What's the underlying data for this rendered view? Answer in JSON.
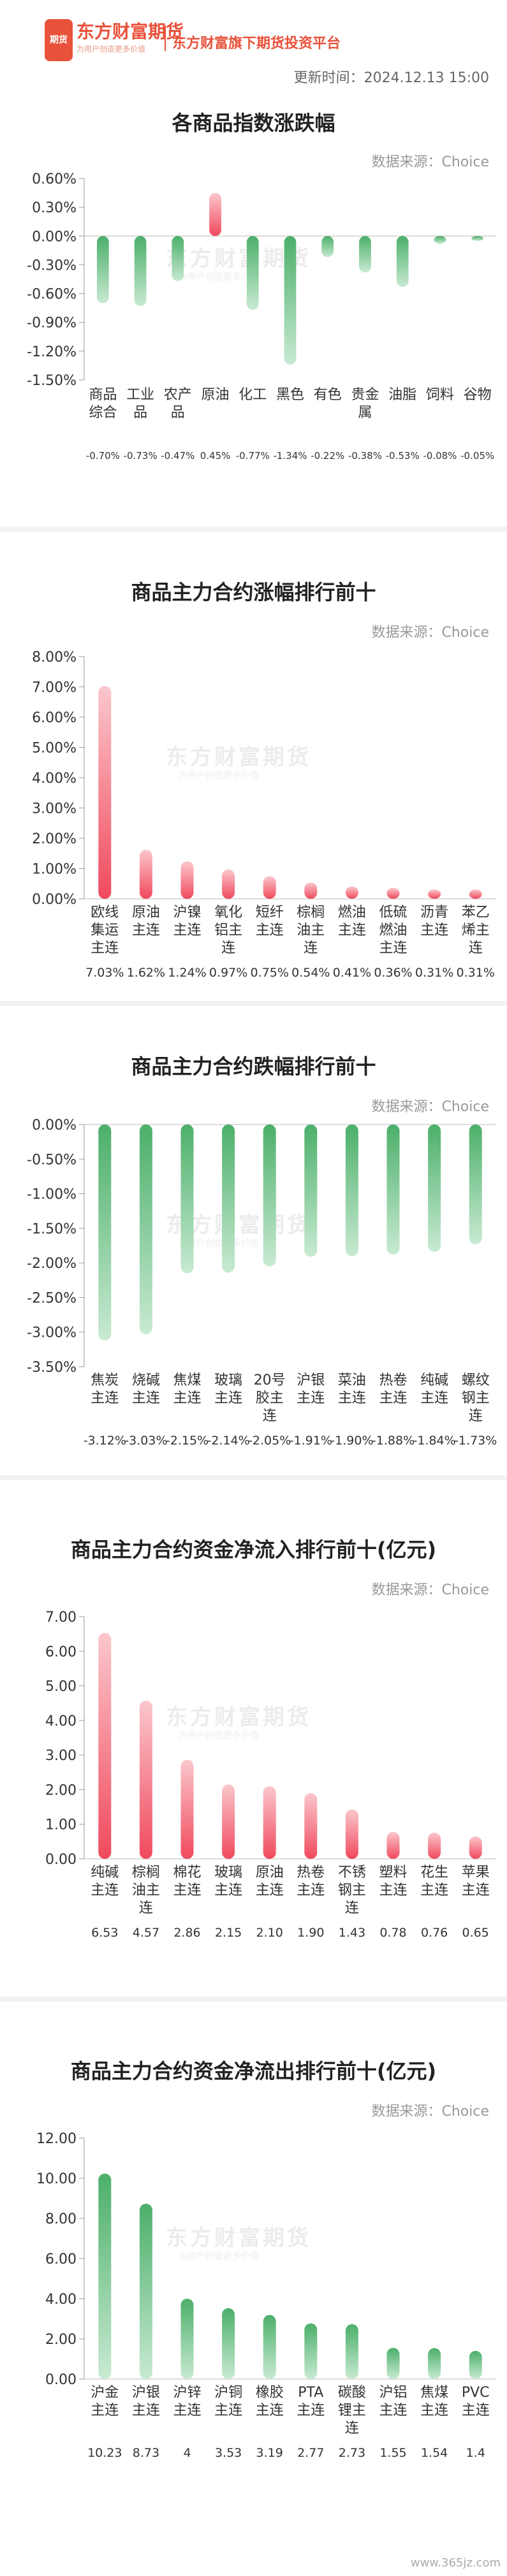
{
  "header": {
    "logo_text": "东方财富期货",
    "logo_box_text": "期货",
    "slogan": "为用户创造更多价值",
    "platform": "东方财富旗下期货投资平台",
    "update_time": "更新时间：2024.12.13 15:00"
  },
  "source_label": "数据来源：Choice",
  "watermark": {
    "text": "东方财富期货",
    "sub": "为用户创造更多价值"
  },
  "footer": "www.365jz.com",
  "colors": {
    "green": "#4caf6a",
    "green_light": "#c8ead2",
    "red": "#f04a5d",
    "red_light": "#fbc7cd"
  },
  "chart_data": [
    {
      "type": "bar",
      "title": "各商品指数涨跌幅",
      "categories": [
        "商品综合",
        "工业品",
        "农产品",
        "原油",
        "化工",
        "黑色",
        "有色",
        "贵金属",
        "油脂",
        "饲料",
        "谷物"
      ],
      "category_lines": [
        [
          "商品",
          "综合"
        ],
        [
          "工业",
          "品"
        ],
        [
          "农产",
          "品"
        ],
        [
          "原油"
        ],
        [
          "化工"
        ],
        [
          "黑色"
        ],
        [
          "有色"
        ],
        [
          "贵金",
          "属"
        ],
        [
          "油脂"
        ],
        [
          "饲料"
        ],
        [
          "谷物"
        ]
      ],
      "values": [
        -0.7,
        -0.73,
        -0.47,
        0.45,
        -0.77,
        -1.34,
        -0.22,
        -0.38,
        -0.53,
        -0.08,
        -0.05
      ],
      "value_labels": [
        "-0.70%",
        "-0.73%",
        "-0.47%",
        "0.45%",
        "-0.77%",
        "-1.34%",
        "-0.22%",
        "-0.38%",
        "-0.53%",
        "-0.08%",
        "-0.05%"
      ],
      "yticks": [
        "0.60%",
        "0.30%",
        "0.00%",
        "-0.30%",
        "-0.60%",
        "-0.90%",
        "-1.20%",
        "-1.50%"
      ],
      "ylim": [
        -1.5,
        0.6
      ]
    },
    {
      "type": "bar",
      "title": "商品主力合约涨幅排行前十",
      "categories": [
        "欧线集运主连",
        "原油主连",
        "沪镍主连",
        "氧化铝主连",
        "短纤主连",
        "棕榈油主连",
        "燃油主连",
        "低硫燃油主连",
        "沥青主连",
        "苯乙烯主连"
      ],
      "category_lines": [
        [
          "欧线",
          "集运",
          "主连"
        ],
        [
          "原油",
          "主连"
        ],
        [
          "沪镍",
          "主连"
        ],
        [
          "氧化",
          "铝主",
          "连"
        ],
        [
          "短纤",
          "主连"
        ],
        [
          "棕榈",
          "油主",
          "连"
        ],
        [
          "燃油",
          "主连"
        ],
        [
          "低硫",
          "燃油",
          "主连"
        ],
        [
          "沥青",
          "主连"
        ],
        [
          "苯乙",
          "烯主",
          "连"
        ]
      ],
      "values": [
        7.03,
        1.62,
        1.24,
        0.97,
        0.75,
        0.54,
        0.41,
        0.36,
        0.31,
        0.31
      ],
      "value_labels": [
        "7.03%",
        "1.62%",
        "1.24%",
        "0.97%",
        "0.75%",
        "0.54%",
        "0.41%",
        "0.36%",
        "0.31%",
        "0.31%"
      ],
      "yticks": [
        "8.00%",
        "7.00%",
        "6.00%",
        "5.00%",
        "4.00%",
        "3.00%",
        "2.00%",
        "1.00%",
        "0.00%"
      ],
      "ylim": [
        0,
        8
      ]
    },
    {
      "type": "bar",
      "title": "商品主力合约跌幅排行前十",
      "categories": [
        "焦炭主连",
        "烧碱主连",
        "焦煤主连",
        "玻璃主连",
        "20号胶主连",
        "沪银主连",
        "菜油主连",
        "热卷主连",
        "纯碱主连",
        "螺纹钢主连"
      ],
      "category_lines": [
        [
          "焦炭",
          "主连"
        ],
        [
          "烧碱",
          "主连"
        ],
        [
          "焦煤",
          "主连"
        ],
        [
          "玻璃",
          "主连"
        ],
        [
          "20号",
          "胶主",
          "连"
        ],
        [
          "沪银",
          "主连"
        ],
        [
          "菜油",
          "主连"
        ],
        [
          "热卷",
          "主连"
        ],
        [
          "纯碱",
          "主连"
        ],
        [
          "螺纹",
          "钢主",
          "连"
        ]
      ],
      "values": [
        -3.12,
        -3.03,
        -2.15,
        -2.14,
        -2.05,
        -1.91,
        -1.9,
        -1.88,
        -1.84,
        -1.73
      ],
      "value_labels": [
        "-3.12%",
        "-3.03%",
        "-2.15%",
        "-2.14%",
        "-2.05%",
        "-1.91%",
        "-1.90%",
        "-1.88%",
        "-1.84%",
        "-1.73%"
      ],
      "yticks": [
        "0.00%",
        "-0.50%",
        "-1.00%",
        "-1.50%",
        "-2.00%",
        "-2.50%",
        "-3.00%",
        "-3.50%"
      ],
      "ylim": [
        -3.5,
        0
      ]
    },
    {
      "type": "bar",
      "title": "商品主力合约资金净流入排行前十(亿元)",
      "categories": [
        "纯碱主连",
        "棕榈油主连",
        "棉花主连",
        "玻璃主连",
        "原油主连",
        "热卷主连",
        "不锈钢主连",
        "塑料主连",
        "花生主连",
        "苹果主连"
      ],
      "category_lines": [
        [
          "纯碱",
          "主连"
        ],
        [
          "棕榈",
          "油主",
          "连"
        ],
        [
          "棉花",
          "主连"
        ],
        [
          "玻璃",
          "主连"
        ],
        [
          "原油",
          "主连"
        ],
        [
          "热卷",
          "主连"
        ],
        [
          "不锈",
          "钢主",
          "连"
        ],
        [
          "塑料",
          "主连"
        ],
        [
          "花生",
          "主连"
        ],
        [
          "苹果",
          "主连"
        ]
      ],
      "values": [
        6.53,
        4.57,
        2.86,
        2.15,
        2.1,
        1.9,
        1.43,
        0.78,
        0.76,
        0.65
      ],
      "value_labels": [
        "6.53",
        "4.57",
        "2.86",
        "2.15",
        "2.10",
        "1.90",
        "1.43",
        "0.78",
        "0.76",
        "0.65"
      ],
      "yticks": [
        "7.00",
        "6.00",
        "5.00",
        "4.00",
        "3.00",
        "2.00",
        "1.00",
        "0.00"
      ],
      "ylim": [
        0,
        7
      ]
    },
    {
      "type": "bar",
      "title": "商品主力合约资金净流出排行前十(亿元)",
      "categories": [
        "沪金主连",
        "沪银主连",
        "沪锌主连",
        "沪铜主连",
        "橡胶主连",
        "PTA主连",
        "碳酸锂主连",
        "沪铝主连",
        "焦煤主连",
        "PVC主连"
      ],
      "category_lines": [
        [
          "沪金",
          "主连"
        ],
        [
          "沪银",
          "主连"
        ],
        [
          "沪锌",
          "主连"
        ],
        [
          "沪铜",
          "主连"
        ],
        [
          "橡胶",
          "主连"
        ],
        [
          "PTA",
          "主连"
        ],
        [
          "碳酸",
          "锂主",
          "连"
        ],
        [
          "沪铝",
          "主连"
        ],
        [
          "焦煤",
          "主连"
        ],
        [
          "PVC",
          "主连"
        ]
      ],
      "values": [
        10.23,
        8.73,
        4,
        3.53,
        3.19,
        2.77,
        2.73,
        1.55,
        1.54,
        1.4
      ],
      "value_labels": [
        "10.23",
        "8.73",
        "4",
        "3.53",
        "3.19",
        "2.77",
        "2.73",
        "1.55",
        "1.54",
        "1.4"
      ],
      "yticks": [
        "12.00",
        "10.00",
        "8.00",
        "6.00",
        "4.00",
        "2.00",
        "0.00"
      ],
      "ylim": [
        0,
        12
      ]
    }
  ]
}
